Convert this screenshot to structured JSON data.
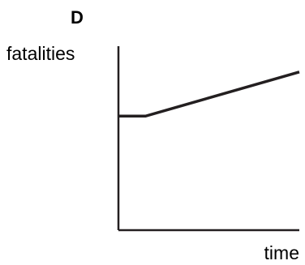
{
  "chart_data": {
    "type": "line",
    "panel_label": "D",
    "xlabel": "time",
    "ylabel": "fatalities",
    "x_ticks": false,
    "y_ticks": false,
    "grid": false,
    "legend": "none",
    "xlim": [
      0,
      10
    ],
    "ylim": [
      0,
      10
    ],
    "series": [
      {
        "x": [
          0,
          1.5,
          10
        ],
        "y": [
          6.2,
          6.2,
          8.6
        ]
      }
    ],
    "colors": {
      "line": "#231f20",
      "axis": "#231f20",
      "text": "#231f20"
    }
  }
}
